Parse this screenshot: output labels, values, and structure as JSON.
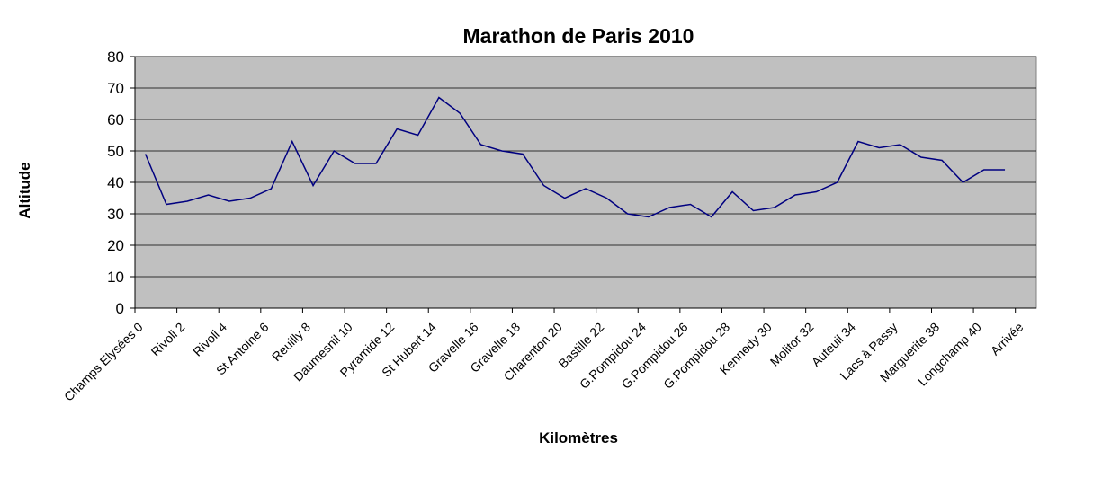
{
  "chart_data": {
    "type": "line",
    "title": "Marathon de Paris 2010",
    "x_label": "Kilomètres",
    "y_label": "Altitude",
    "categories": [
      "Champs Elysées 0",
      null,
      "Rivoli 2",
      null,
      "Rivoli 4",
      null,
      "St Antoine 6",
      null,
      "Reuilly 8",
      null,
      "Daumesnil 10",
      null,
      "Pyramide 12",
      null,
      "St Hubert 14",
      null,
      "Gravelle 16",
      null,
      "Gravelle 18",
      null,
      "Charenton 20",
      null,
      "Bastille 22",
      null,
      "G.Pompidou 24",
      null,
      "G.Pompidou 26",
      null,
      "G.Pompidou 28",
      null,
      "Kennedy 30",
      null,
      "Molitor 32",
      null,
      "Auteuil 34",
      null,
      "Lacs à Passy",
      null,
      "Marguerite 38",
      null,
      "Longchamp 40",
      null,
      "Arrivée"
    ],
    "series": [
      {
        "name": "Altitude",
        "color": "#000080",
        "values": [
          49,
          33,
          34,
          36,
          34,
          35,
          38,
          53,
          39,
          50,
          46,
          46,
          57,
          55,
          67,
          62,
          52,
          50,
          49,
          39,
          35,
          38,
          35,
          30,
          29,
          32,
          33,
          29,
          37,
          31,
          32,
          36,
          37,
          40,
          53,
          51,
          52,
          48,
          47,
          40,
          44,
          44,
          null
        ]
      }
    ],
    "ylim": [
      0,
      80
    ],
    "yticks": [
      0,
      10,
      20,
      30,
      40,
      50,
      60,
      70,
      80
    ],
    "grid": true
  }
}
